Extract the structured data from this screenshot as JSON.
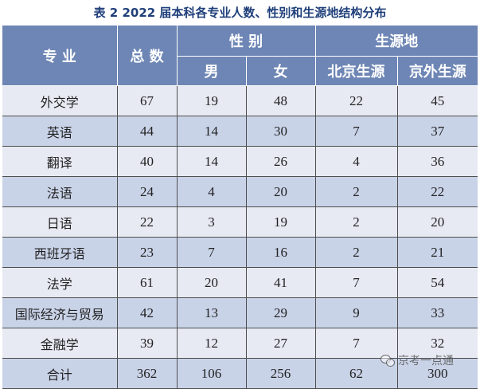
{
  "title": "表 2  2022 届本科各专业人数、性别和生源地结构分布",
  "headers": {
    "major": "专 业",
    "total": "总 数",
    "gender": "性 别",
    "origin": "生源地",
    "male": "男",
    "female": "女",
    "beijing": "北京生源",
    "outside": "京外生源"
  },
  "rows": [
    {
      "major": "外交学",
      "total": "67",
      "male": "19",
      "female": "48",
      "beijing": "22",
      "outside": "45"
    },
    {
      "major": "英语",
      "total": "44",
      "male": "14",
      "female": "30",
      "beijing": "7",
      "outside": "37"
    },
    {
      "major": "翻译",
      "total": "40",
      "male": "14",
      "female": "26",
      "beijing": "4",
      "outside": "36"
    },
    {
      "major": "法语",
      "total": "24",
      "male": "4",
      "female": "20",
      "beijing": "2",
      "outside": "22"
    },
    {
      "major": "日语",
      "total": "22",
      "male": "3",
      "female": "19",
      "beijing": "2",
      "outside": "20"
    },
    {
      "major": "西班牙语",
      "total": "23",
      "male": "7",
      "female": "16",
      "beijing": "2",
      "outside": "21"
    },
    {
      "major": "法学",
      "total": "61",
      "male": "20",
      "female": "41",
      "beijing": "7",
      "outside": "54"
    },
    {
      "major": "国际经济与贸易",
      "total": "42",
      "male": "13",
      "female": "29",
      "beijing": "9",
      "outside": "33"
    },
    {
      "major": "金融学",
      "total": "39",
      "male": "12",
      "female": "27",
      "beijing": "7",
      "outside": "32"
    }
  ],
  "total_row": {
    "label": "合计",
    "total": "362",
    "male": "106",
    "female": "256",
    "beijing": "62",
    "outside": "300"
  },
  "watermark": "京考一点通",
  "colors": {
    "header_bg": "#6e86b5",
    "row_light": "#e7eaf3",
    "row_dark": "#c9d3e8",
    "title": "#1f3f7a"
  }
}
